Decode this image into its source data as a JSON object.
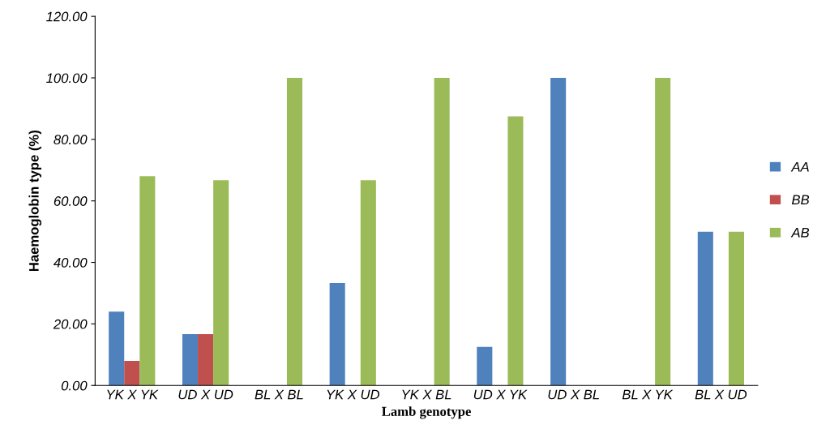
{
  "chart_data": {
    "type": "bar",
    "xlabel": "Lamb genotype",
    "ylabel": "Haemoglobin type (%)",
    "categories": [
      "YK X YK",
      "UD X UD",
      "BL X BL",
      "YK X UD",
      "YK X BL",
      "UD X YK",
      "UD X BL",
      "BL X YK",
      "BL X UD"
    ],
    "series": [
      {
        "name": "AA",
        "color": "#4f81bd",
        "values": [
          24,
          16.7,
          0,
          33.3,
          0,
          12.5,
          100,
          0,
          50
        ]
      },
      {
        "name": "BB",
        "color": "#c0504d",
        "values": [
          8,
          16.7,
          0,
          0,
          0,
          0,
          0,
          0,
          0
        ]
      },
      {
        "name": "AB",
        "color": "#9bbb59",
        "values": [
          68,
          66.7,
          100,
          66.7,
          100,
          87.5,
          0,
          100,
          50
        ]
      }
    ],
    "ylim": [
      0,
      120
    ],
    "yticks": [
      {
        "value": 0,
        "label": "0.00"
      },
      {
        "value": 20,
        "label": "20.00"
      },
      {
        "value": 40,
        "label": "40.00"
      },
      {
        "value": 60,
        "label": "60.00"
      },
      {
        "value": 80,
        "label": "80.00"
      },
      {
        "value": 100,
        "label": "100.00"
      },
      {
        "value": 120,
        "label": "120.00"
      }
    ],
    "grid": false,
    "legend": "right"
  }
}
